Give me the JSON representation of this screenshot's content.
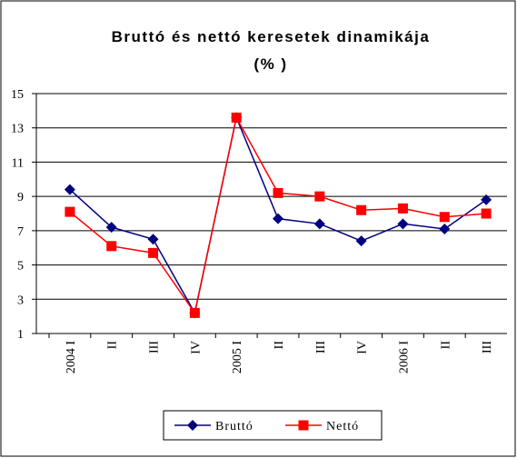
{
  "chart_data": {
    "type": "line",
    "title": "Bruttó és nettó keresetek dinamikája",
    "subtitle": "(% )",
    "categories": [
      "2004 I",
      "II",
      "III",
      "IV",
      "2005 I",
      "II",
      "III",
      "IV",
      "2006 I",
      "II",
      "III"
    ],
    "series": [
      {
        "name": "Bruttó",
        "color": "#000080",
        "marker": "diamond",
        "values": [
          9.4,
          7.2,
          6.5,
          2.2,
          13.6,
          7.7,
          7.4,
          6.4,
          7.4,
          7.1,
          8.8
        ]
      },
      {
        "name": "Nettó",
        "color": "#ff0000",
        "marker": "square",
        "values": [
          8.1,
          6.1,
          5.7,
          2.2,
          13.6,
          9.2,
          9.0,
          8.2,
          8.3,
          7.8,
          8.0
        ]
      }
    ],
    "ylim": [
      1,
      15
    ],
    "yticks": [
      1,
      3,
      5,
      7,
      9,
      11,
      13,
      15
    ],
    "grid": true,
    "legend": "bottom"
  }
}
